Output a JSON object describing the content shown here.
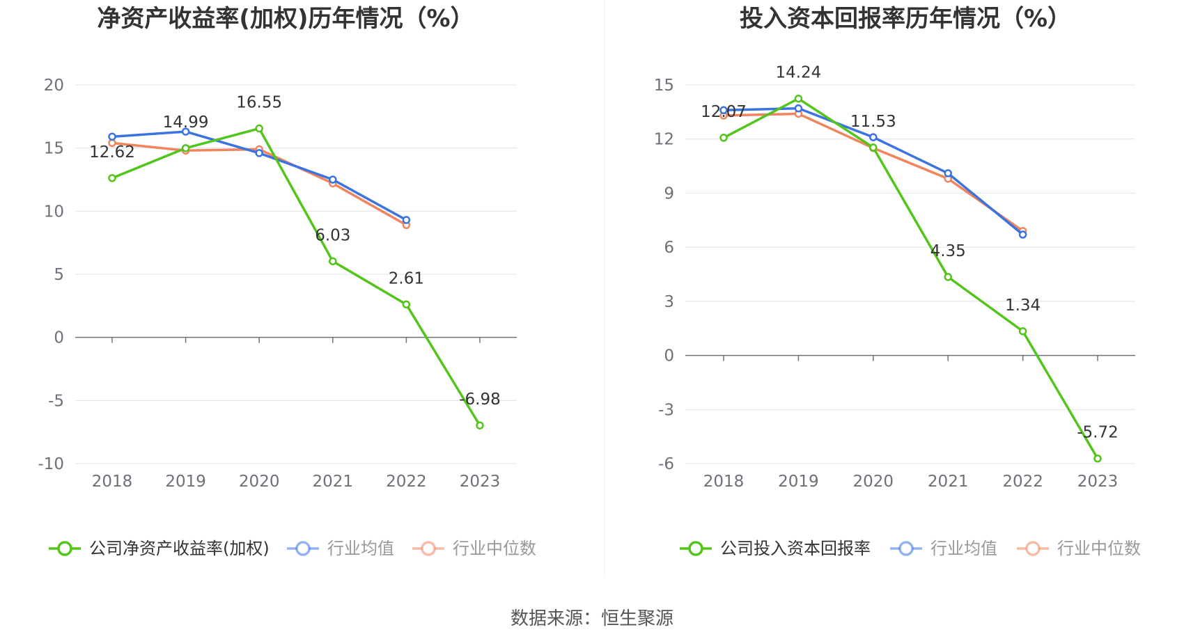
{
  "source_text": "数据来源：恒生聚源",
  "colors": {
    "company": "#52c41a",
    "industry_avg": "#3b73e0",
    "industry_median": "#f0845c",
    "grid": "#e0e3ef",
    "axis": "#6e7079",
    "divider": "#eeeeee"
  },
  "chart_data": [
    {
      "type": "line",
      "title": "净资产收益率(加权)历年情况（%）",
      "categories": [
        "2018",
        "2019",
        "2020",
        "2021",
        "2022",
        "2023"
      ],
      "ylim": [
        -10,
        20
      ],
      "yticks": [
        20,
        15,
        10,
        5,
        0,
        -5,
        -10
      ],
      "grid": true,
      "legend_position": "bottom",
      "series": [
        {
          "name": "公司净资产收益率(加权)",
          "role": "company",
          "values": [
            12.62,
            14.99,
            16.55,
            6.03,
            2.61,
            -6.98
          ],
          "labels": [
            "12.62",
            "14.99",
            "16.55",
            "6.03",
            "2.61",
            "-6.98"
          ]
        },
        {
          "name": "行业均值",
          "role": "industry_avg",
          "values": [
            15.9,
            16.3,
            14.6,
            12.5,
            9.3,
            null
          ]
        },
        {
          "name": "行业中位数",
          "role": "industry_median",
          "values": [
            15.4,
            14.8,
            14.9,
            12.2,
            8.9,
            null
          ]
        }
      ]
    },
    {
      "type": "line",
      "title": "投入资本回报率历年情况（%）",
      "categories": [
        "2018",
        "2019",
        "2020",
        "2021",
        "2022",
        "2023"
      ],
      "ylim": [
        -6,
        15
      ],
      "yticks": [
        15,
        12,
        9,
        6,
        3,
        0,
        -3,
        -6
      ],
      "grid": true,
      "legend_position": "bottom",
      "series": [
        {
          "name": "公司投入资本回报率",
          "role": "company",
          "values": [
            12.07,
            14.24,
            11.53,
            4.35,
            1.34,
            -5.72
          ],
          "labels": [
            "12.07",
            "14.24",
            "11.53",
            "4.35",
            "1.34",
            "-5.72"
          ]
        },
        {
          "name": "行业均值",
          "role": "industry_avg",
          "values": [
            13.6,
            13.7,
            12.1,
            10.1,
            6.7,
            null
          ]
        },
        {
          "name": "行业中位数",
          "role": "industry_median",
          "values": [
            13.3,
            13.4,
            11.5,
            9.8,
            6.9,
            null
          ]
        }
      ]
    }
  ]
}
